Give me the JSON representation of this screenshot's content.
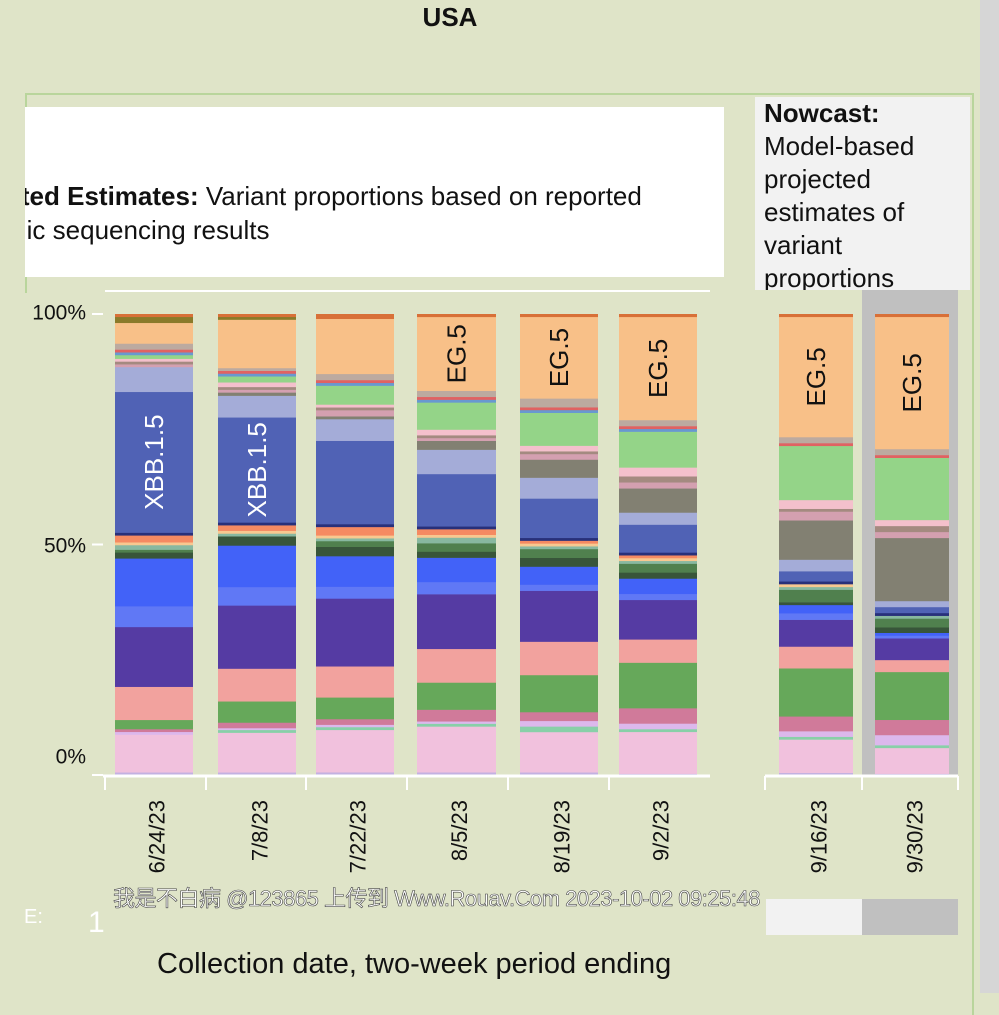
{
  "title": "USA",
  "reported_box": {
    "label_bold": "nted Estimates:",
    "text": " Variant proportions based on reported",
    "line2": "mic sequencing results"
  },
  "nowcast_box": {
    "label_bold": "Nowcast:",
    "text": "Model-based projected estimates of variant proportions"
  },
  "watermark": "我是不白病 @123865 上传到 Www.Rouav.Com 2023-10-02 09:25:48",
  "bottom_marks": {
    "e": "E:",
    "one": "1"
  },
  "chart_data": {
    "type": "bar",
    "stacked": true,
    "title": "USA",
    "xlabel": "Collection date, two-week period ending",
    "ylabel": "",
    "ylim": [
      0,
      100
    ],
    "ytick_labels": [
      "100%",
      "50%",
      "0%"
    ],
    "yticks": [
      100,
      50,
      0
    ],
    "categories": [
      "6/24/23",
      "7/8/23",
      "7/22/23",
      "8/5/23",
      "8/19/23",
      "9/2/23",
      "9/16/23",
      "9/30/23"
    ],
    "nowcast_categories": [
      "9/16/23",
      "9/30/23"
    ],
    "highlighted_category": "9/30/23",
    "bar_labels": [
      {
        "category": "6/24/23",
        "series_index": 16,
        "text": "XBB.1.5",
        "color": "#ffffff"
      },
      {
        "category": "7/8/23",
        "series_index": 16,
        "text": "XBB.1.5",
        "color": "#ffffff"
      },
      {
        "category": "8/5/23",
        "series_index": 26,
        "text": "EG.5",
        "color": "#111111"
      },
      {
        "category": "8/19/23",
        "series_index": 26,
        "text": "EG.5",
        "color": "#111111"
      },
      {
        "category": "9/2/23",
        "series_index": 26,
        "text": "EG.5",
        "color": "#111111"
      },
      {
        "category": "9/16/23",
        "series_index": 26,
        "text": "EG.5",
        "color": "#111111"
      },
      {
        "category": "9/30/23",
        "series_index": 26,
        "text": "EG.5",
        "color": "#111111"
      }
    ],
    "series": [
      {
        "color": "#c3b1e1",
        "values": [
          0.6,
          0.6,
          0.6,
          0.6,
          0.6,
          0.3,
          0.5,
          0.3
        ]
      },
      {
        "color": "#f1c1dd",
        "values": [
          8.2,
          8.6,
          9.0,
          9.8,
          8.7,
          9.0,
          7.2,
          5.6
        ]
      },
      {
        "color": "#88d0a8",
        "values": [
          0.0,
          0.6,
          0.6,
          0.6,
          1.2,
          0.6,
          0.6,
          0.6
        ]
      },
      {
        "color": "#dcb8ec",
        "values": [
          0.6,
          0.4,
          0.5,
          0.5,
          1.2,
          1.2,
          1.2,
          2.2
        ]
      },
      {
        "color": "#d07a9a",
        "values": [
          0.6,
          1.2,
          1.2,
          2.5,
          1.9,
          3.3,
          3.2,
          3.3
        ]
      },
      {
        "color": "#66a85a",
        "values": [
          2.0,
          4.6,
          4.6,
          5.8,
          8.0,
          9.8,
          10.4,
          10.4
        ]
      },
      {
        "color": "#f2a29e",
        "values": [
          7.2,
          7.1,
          6.6,
          7.2,
          7.2,
          5.0,
          4.7,
          2.6
        ]
      },
      {
        "color": "#553ba3",
        "values": [
          13.0,
          13.7,
          14.4,
          11.7,
          11.0,
          8.5,
          5.8,
          4.7
        ]
      },
      {
        "color": "#6078f5",
        "values": [
          4.5,
          4.0,
          2.5,
          2.6,
          1.3,
          1.3,
          1.4,
          0.6
        ]
      },
      {
        "color": "#4262f8",
        "values": [
          10.4,
          9.0,
          6.5,
          5.2,
          3.9,
          3.3,
          1.8,
          0.6
        ]
      },
      {
        "color": "#38553a",
        "values": [
          1.3,
          2.0,
          2.0,
          1.3,
          1.9,
          1.3,
          0.6,
          1.2
        ]
      },
      {
        "color": "#50804e",
        "values": [
          0.6,
          0.0,
          1.2,
          1.8,
          1.9,
          1.9,
          2.7,
          1.9
        ]
      },
      {
        "color": "#88b8a0",
        "values": [
          1.0,
          0.6,
          0.6,
          1.2,
          0.6,
          0.6,
          0.6,
          0.6
        ]
      },
      {
        "color": "#f8c890",
        "values": [
          0.6,
          0.6,
          0.6,
          0.6,
          0.6,
          0.6,
          0.6,
          0.0
        ]
      },
      {
        "color": "#f58a62",
        "values": [
          1.5,
          1.2,
          1.8,
          1.2,
          0.6,
          0.6,
          0.0,
          0.0
        ]
      },
      {
        "color": "#28307a",
        "values": [
          0.6,
          0.6,
          0.6,
          0.6,
          0.6,
          0.6,
          0.6,
          0.6
        ]
      },
      {
        "color": "#5062b5",
        "values": [
          30.6,
          22.8,
          17.7,
          11.2,
          8.5,
          6.0,
          2.2,
          1.3
        ]
      },
      {
        "color": "#a4acd8",
        "values": [
          5.4,
          4.7,
          4.6,
          5.2,
          4.5,
          2.6,
          2.5,
          1.3
        ]
      },
      {
        "color": "#828072",
        "values": [
          0.0,
          0.7,
          0.6,
          1.9,
          3.9,
          5.2,
          8.5,
          13.7
        ]
      },
      {
        "color": "#d4a0b0",
        "values": [
          0.6,
          0.6,
          1.3,
          0.6,
          1.2,
          1.3,
          1.9,
          1.3
        ]
      },
      {
        "color": "#a48a80",
        "values": [
          0.6,
          0.6,
          0.6,
          0.6,
          0.6,
          1.3,
          0.6,
          1.3
        ]
      },
      {
        "color": "#f4c0cc",
        "values": [
          0.6,
          1.0,
          0.6,
          1.2,
          1.2,
          1.9,
          1.9,
          1.3
        ]
      },
      {
        "color": "#94d488",
        "values": [
          0.8,
          1.3,
          4.0,
          5.8,
          7.1,
          7.7,
          11.7,
          13.5
        ]
      },
      {
        "color": "#6898d0",
        "values": [
          0.6,
          0.6,
          0.6,
          0.6,
          0.6,
          0.6,
          0.0,
          0.0
        ]
      },
      {
        "color": "#e06262",
        "values": [
          0.6,
          0.6,
          0.6,
          0.6,
          0.6,
          0.6,
          0.6,
          0.6
        ]
      },
      {
        "color": "#bcaaa0",
        "values": [
          1.3,
          0.6,
          1.3,
          1.3,
          1.9,
          1.3,
          1.3,
          1.3
        ]
      },
      {
        "color": "#f8c088",
        "values": [
          4.5,
          10.5,
          11.7,
          15.8,
          17.6,
          22.2,
          26.0,
          28.7
        ]
      },
      {
        "color": "#8a7a2a",
        "values": [
          1.3,
          0.6,
          0.0,
          0.0,
          0.0,
          0.0,
          0.0,
          0.0
        ]
      },
      {
        "color": "#d87038",
        "values": [
          0.6,
          0.6,
          1.0,
          0.6,
          0.6,
          0.6,
          0.6,
          0.6
        ]
      }
    ]
  }
}
